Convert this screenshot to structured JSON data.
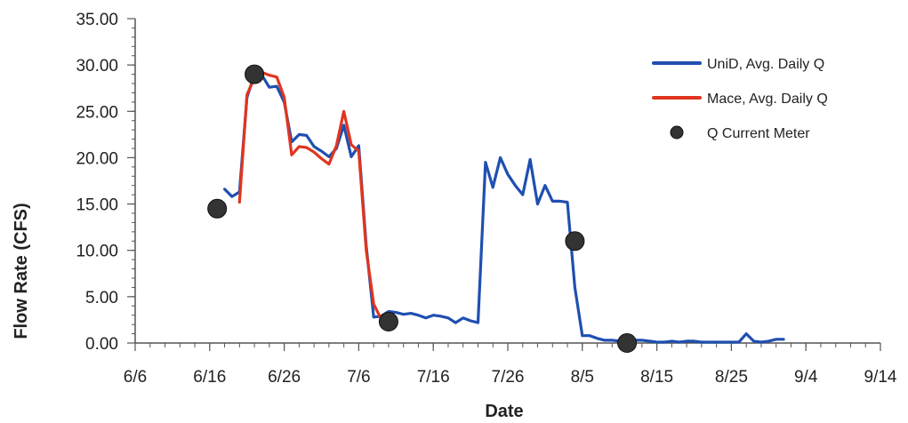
{
  "chart_data": {
    "type": "line",
    "xlabel": "Date",
    "ylabel": "Flow Rate (CFS)",
    "x_ticks": [
      "6/6",
      "6/16",
      "6/26",
      "7/6",
      "7/16",
      "7/26",
      "8/5",
      "8/15",
      "8/25",
      "9/4",
      "9/14"
    ],
    "y_ticks": [
      "0.00",
      "5.00",
      "10.00",
      "15.00",
      "20.00",
      "25.00",
      "30.00",
      "35.00"
    ],
    "xlim": [
      "6/6",
      "9/14"
    ],
    "ylim": [
      0,
      35
    ],
    "legend_position": "right",
    "series": [
      {
        "name": "UniD, Avg. Daily Q",
        "kind": "line",
        "color": "#1f4fb0",
        "x": [
          "6/18",
          "6/19",
          "6/20",
          "6/21",
          "6/22",
          "6/23",
          "6/24",
          "6/25",
          "6/26",
          "6/27",
          "6/28",
          "6/29",
          "6/30",
          "7/1",
          "7/2",
          "7/3",
          "7/4",
          "7/5",
          "7/6",
          "7/7",
          "7/8",
          "7/9",
          "7/10",
          "7/11",
          "7/12",
          "7/13",
          "7/14",
          "7/15",
          "7/16",
          "7/17",
          "7/18",
          "7/19",
          "7/20",
          "7/21",
          "7/22",
          "7/23",
          "7/24",
          "7/25",
          "7/26",
          "7/27",
          "7/28",
          "7/29",
          "7/30",
          "7/31",
          "8/1",
          "8/2",
          "8/3",
          "8/4",
          "8/5",
          "8/6",
          "8/7",
          "8/8",
          "8/9",
          "8/10",
          "8/11",
          "8/12",
          "8/13",
          "8/14",
          "8/15",
          "8/16",
          "8/17",
          "8/18",
          "8/19",
          "8/20",
          "8/21",
          "8/22",
          "8/23",
          "8/24",
          "8/25",
          "8/26",
          "8/27",
          "8/28",
          "8/29",
          "8/30",
          "8/31",
          "9/1"
        ],
        "y": [
          16.6,
          15.8,
          16.3,
          26.5,
          29.0,
          28.9,
          27.6,
          27.7,
          26.0,
          21.7,
          22.5,
          22.4,
          21.2,
          20.7,
          20.1,
          21.0,
          23.5,
          20.1,
          21.3,
          10.5,
          2.8,
          2.9,
          3.4,
          3.3,
          3.1,
          3.2,
          3.0,
          2.7,
          3.0,
          2.9,
          2.7,
          2.2,
          2.7,
          2.4,
          2.2,
          19.5,
          16.8,
          20.0,
          18.2,
          17.0,
          16.0,
          19.8,
          15.0,
          17.0,
          15.3,
          15.3,
          15.2,
          6.0,
          0.8,
          0.8,
          0.5,
          0.3,
          0.3,
          0.2,
          0.2,
          0.3,
          0.3,
          0.2,
          0.1,
          0.1,
          0.2,
          0.1,
          0.2,
          0.2,
          0.1,
          0.1,
          0.1,
          0.1,
          0.1,
          0.1,
          1.0,
          0.2,
          0.1,
          0.2,
          0.4,
          0.4
        ]
      },
      {
        "name": "Mace, Avg. Daily Q",
        "kind": "line",
        "color": "#e0351f",
        "x": [
          "6/20",
          "6/21",
          "6/22",
          "6/23",
          "6/24",
          "6/25",
          "6/26",
          "6/27",
          "6/28",
          "6/29",
          "6/30",
          "7/1",
          "7/2",
          "7/3",
          "7/4",
          "7/5",
          "7/6",
          "7/7",
          "7/8",
          "7/9"
        ],
        "y": [
          15.2,
          26.8,
          28.6,
          29.2,
          28.9,
          28.7,
          26.5,
          20.3,
          21.2,
          21.1,
          20.6,
          19.9,
          19.3,
          21.3,
          25.0,
          21.4,
          20.7,
          10.0,
          4.2,
          2.6
        ]
      },
      {
        "name": "Q Current Meter",
        "kind": "scatter",
        "color": "#333333",
        "x": [
          "6/17",
          "6/22",
          "7/10",
          "8/4",
          "8/11"
        ],
        "y": [
          14.5,
          29.0,
          2.3,
          11.0,
          0.0
        ]
      }
    ]
  }
}
